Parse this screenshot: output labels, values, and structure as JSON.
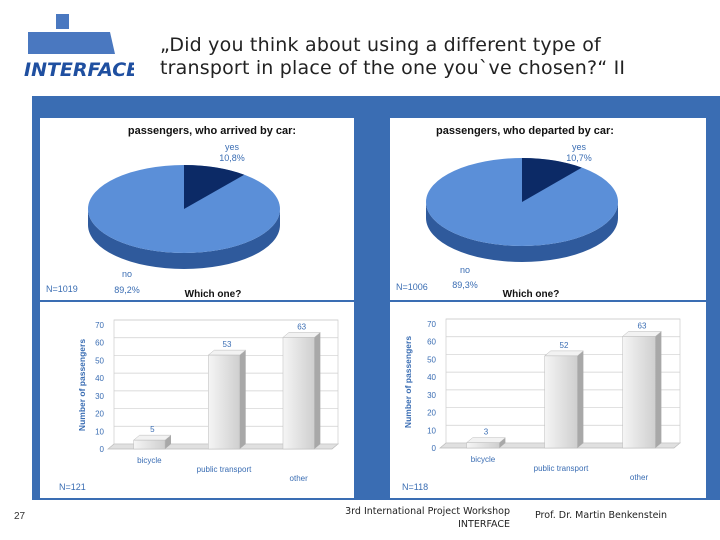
{
  "slide": {
    "title_line1": "„Did you think about using a different type of",
    "title_line2": "transport in place of the one you`ve chosen?“ II",
    "page_number": "27",
    "footer_line1": "3rd International Project Workshop",
    "footer_line2": "INTERFACE",
    "footer_author": "Prof. Dr. Martin Benkenstein",
    "logo_text": "INTERFACE"
  },
  "colors": {
    "panel": "#3a6db3",
    "pie_no": "#5b8fd8",
    "pie_yes": "#0c2a66",
    "bar": "#e4e4e4"
  },
  "chart_data": [
    {
      "type": "pie",
      "title": "passengers, who arrived by car:",
      "n_label": "N=1019",
      "slices": [
        {
          "label": "yes",
          "value_label": "10,8%",
          "value": 10.8
        },
        {
          "label": "no",
          "value_label": "89,2%",
          "value": 89.2
        }
      ]
    },
    {
      "type": "pie",
      "title": "passengers, who departed by car:",
      "n_label": "N=1006",
      "slices": [
        {
          "label": "yes",
          "value_label": "10,7%",
          "value": 10.7
        },
        {
          "label": "no",
          "value_label": "89,3%",
          "value": 89.3
        }
      ]
    },
    {
      "type": "bar",
      "title": "Which one?",
      "n_label": "N=121",
      "ylabel": "Number of passengers",
      "ylim": [
        0,
        70
      ],
      "yticks": [
        "0",
        "10",
        "20",
        "30",
        "40",
        "50",
        "60",
        "70"
      ],
      "categories": [
        "bicycle",
        "public transport",
        "other"
      ],
      "values": [
        5,
        53,
        63
      ]
    },
    {
      "type": "bar",
      "title": "Which one?",
      "n_label": "N=118",
      "ylabel": "Number of passengers",
      "ylim": [
        0,
        70
      ],
      "yticks": [
        "0",
        "10",
        "20",
        "30",
        "40",
        "50",
        "60",
        "70"
      ],
      "categories": [
        "bicycle",
        "public transport",
        "other"
      ],
      "values": [
        3,
        52,
        63
      ]
    }
  ]
}
